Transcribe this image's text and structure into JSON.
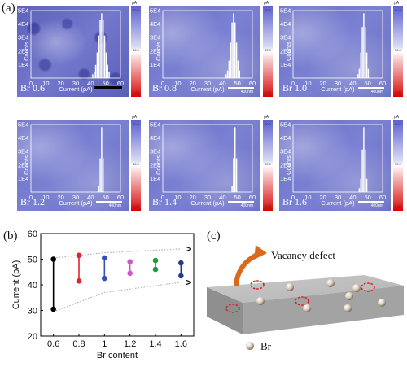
{
  "panel_a": {
    "label": "(a)",
    "maps": [
      {
        "caption": "Br 0.6",
        "scale": "",
        "hist": [
          41,
          42,
          43,
          44,
          45,
          46,
          47,
          48,
          49,
          50,
          51,
          52
        ]
      },
      {
        "caption": "Br 0.8",
        "scale": "400nm",
        "hist": [
          42,
          43,
          44,
          45,
          46,
          47,
          48,
          49,
          50,
          51
        ]
      },
      {
        "caption": "Br 1.0",
        "scale": "400nm",
        "hist": [
          43,
          44,
          45,
          46,
          47,
          48,
          49,
          50
        ]
      },
      {
        "caption": "Br 1.2",
        "scale": "400nm",
        "hist": [
          45,
          46,
          47,
          48
        ]
      },
      {
        "caption": "Br 1.4",
        "scale": "400nm",
        "hist": [
          46,
          47,
          48,
          49
        ]
      },
      {
        "caption": "Br 1.6",
        "scale": "400nm",
        "hist": [
          44,
          45,
          46,
          47,
          48,
          49
        ]
      }
    ],
    "inset_ylabel": "Counts",
    "inset_xlabel": "Current (pA)",
    "inset_yticks": [
      "1E4",
      "2E4",
      "3E4",
      "4E4",
      "5E4"
    ],
    "inset_xticks": [
      "0",
      "10",
      "20",
      "30",
      "40",
      "50",
      "60"
    ],
    "colorbar": {
      "unit": "pA",
      "top": "60.0",
      "mid": "30.0",
      "bottom": "0.00"
    }
  },
  "panel_b": {
    "label": "(b)",
    "chart_data": {
      "type": "scatter",
      "xlabel": "Br content",
      "ylabel": "Current (pA)",
      "x_ticks": [
        "0.6",
        "0.8",
        "1",
        "1.2",
        "1.4",
        "1.6"
      ],
      "y_ticks": [
        "20",
        "30",
        "40",
        "50",
        "60"
      ],
      "ylim": [
        20,
        60
      ],
      "xlim": [
        0.5,
        1.7
      ],
      "ranges": [
        {
          "x": 0.6,
          "min": 30.5,
          "max": 50.0,
          "color": "#000000"
        },
        {
          "x": 0.8,
          "min": 41.5,
          "max": 51.5,
          "color": "#e0242a"
        },
        {
          "x": 1.0,
          "min": 42.5,
          "max": 50.5,
          "color": "#3a4fb5"
        },
        {
          "x": 1.2,
          "min": 44.5,
          "max": 49.0,
          "color": "#d055c7"
        },
        {
          "x": 1.4,
          "min": 46.0,
          "max": 49.5,
          "color": "#139b3c"
        },
        {
          "x": 1.6,
          "min": 43.5,
          "max": 48.5,
          "color": "#243a8a"
        }
      ],
      "envelope_upper": [
        [
          0.6,
          50.5
        ],
        [
          1.0,
          52.5
        ],
        [
          1.6,
          54
        ]
      ],
      "envelope_lower": [
        [
          0.6,
          29.5
        ],
        [
          1.0,
          37
        ],
        [
          1.6,
          41
        ]
      ],
      "arrow_glyph": ">"
    }
  },
  "panel_c": {
    "label": "(c)",
    "title": "Vacancy defect",
    "legend": "Br"
  }
}
